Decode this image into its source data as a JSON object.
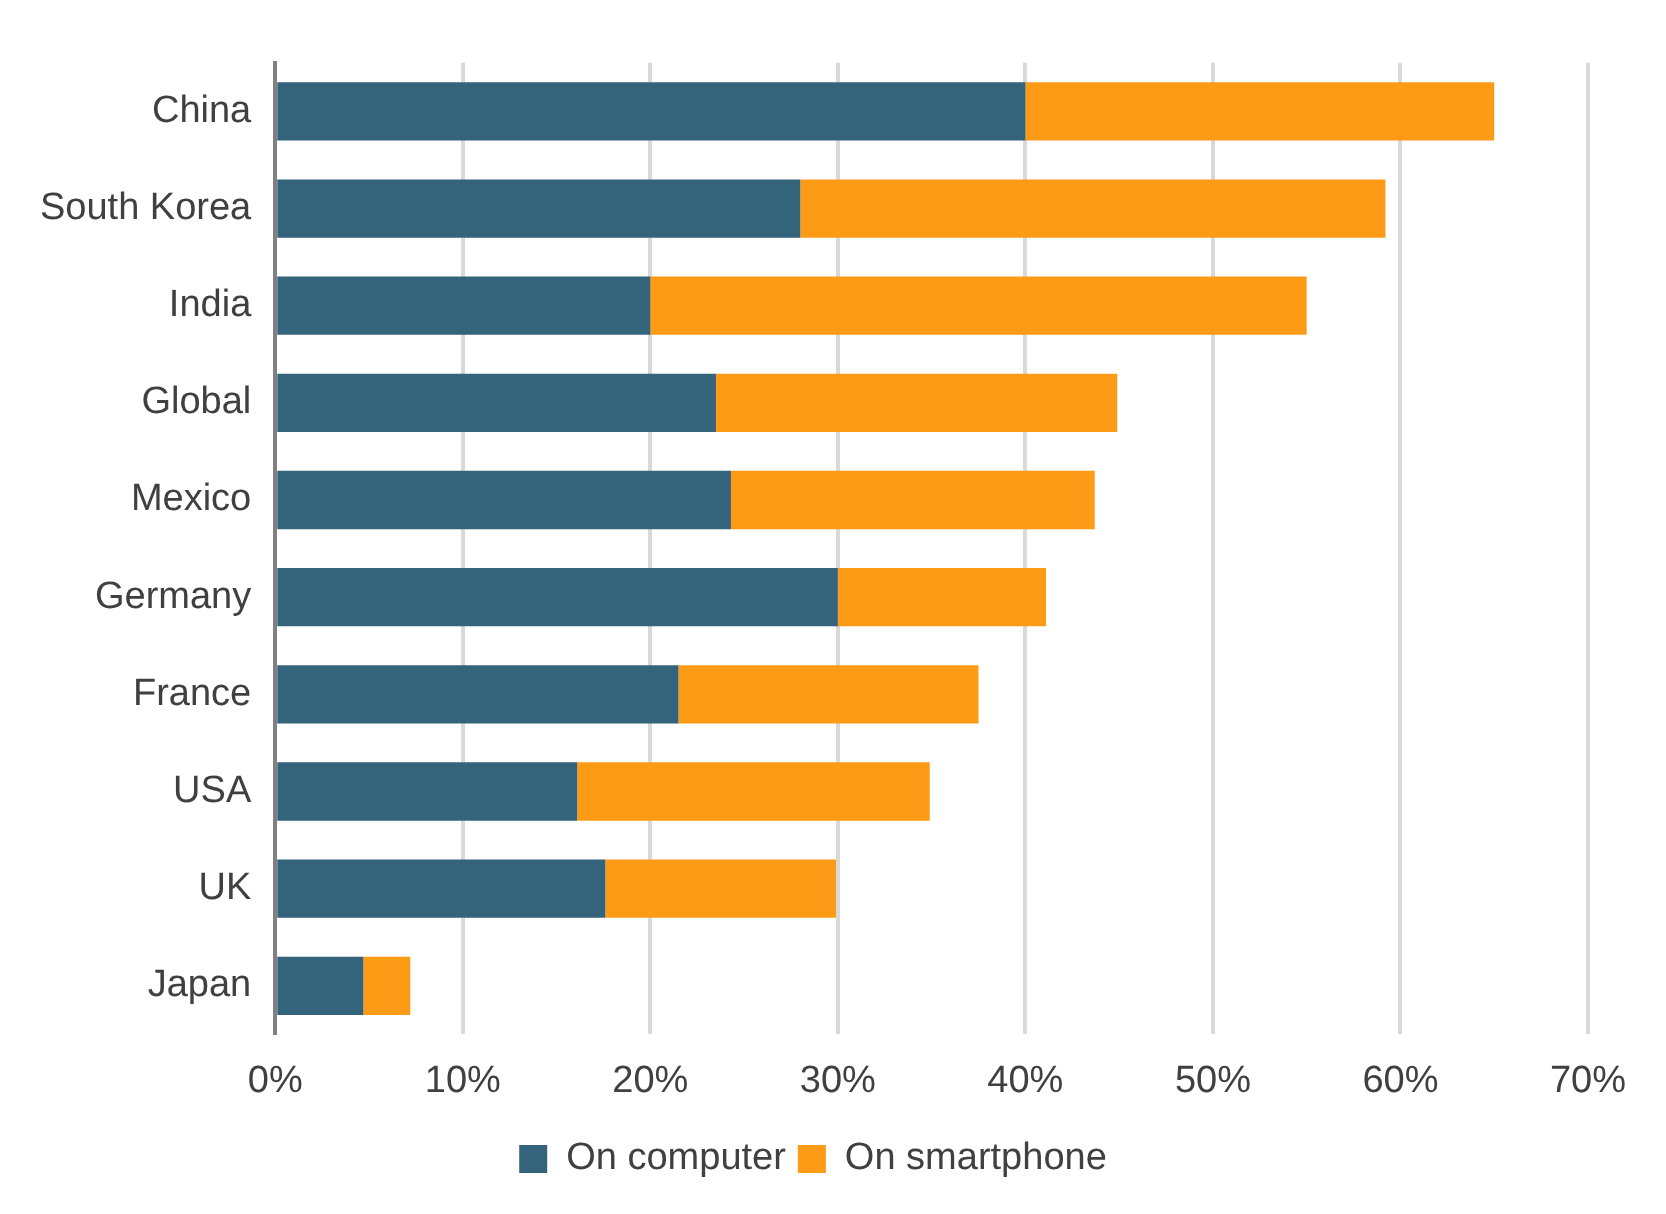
{
  "chart_data": {
    "type": "bar",
    "orientation": "horizontal",
    "stacked": true,
    "categories": [
      "China",
      "South Korea",
      "India",
      "Global",
      "Mexico",
      "Germany",
      "France",
      "USA",
      "UK",
      "Japan"
    ],
    "series": [
      {
        "name": "On computer",
        "color": "#34637c",
        "values": [
          40,
          28,
          20,
          23.5,
          24.3,
          30,
          21.5,
          16.1,
          17.6,
          4.7
        ]
      },
      {
        "name": "On smartphone",
        "color": "#fd9b17",
        "values": [
          25,
          31.2,
          35,
          21.4,
          19.4,
          11.1,
          16,
          18.8,
          12.3,
          2.5
        ]
      }
    ],
    "xlim": [
      0,
      70
    ],
    "xticks": [
      {
        "value": 0,
        "label": "0%"
      },
      {
        "value": 10,
        "label": "10%"
      },
      {
        "value": 20,
        "label": "20%"
      },
      {
        "value": 30,
        "label": "30%"
      },
      {
        "value": 40,
        "label": "40%"
      },
      {
        "value": 50,
        "label": "50%"
      },
      {
        "value": 60,
        "label": "60%"
      },
      {
        "value": 70,
        "label": "70%"
      }
    ],
    "grid": "x",
    "legend": "bottom"
  }
}
